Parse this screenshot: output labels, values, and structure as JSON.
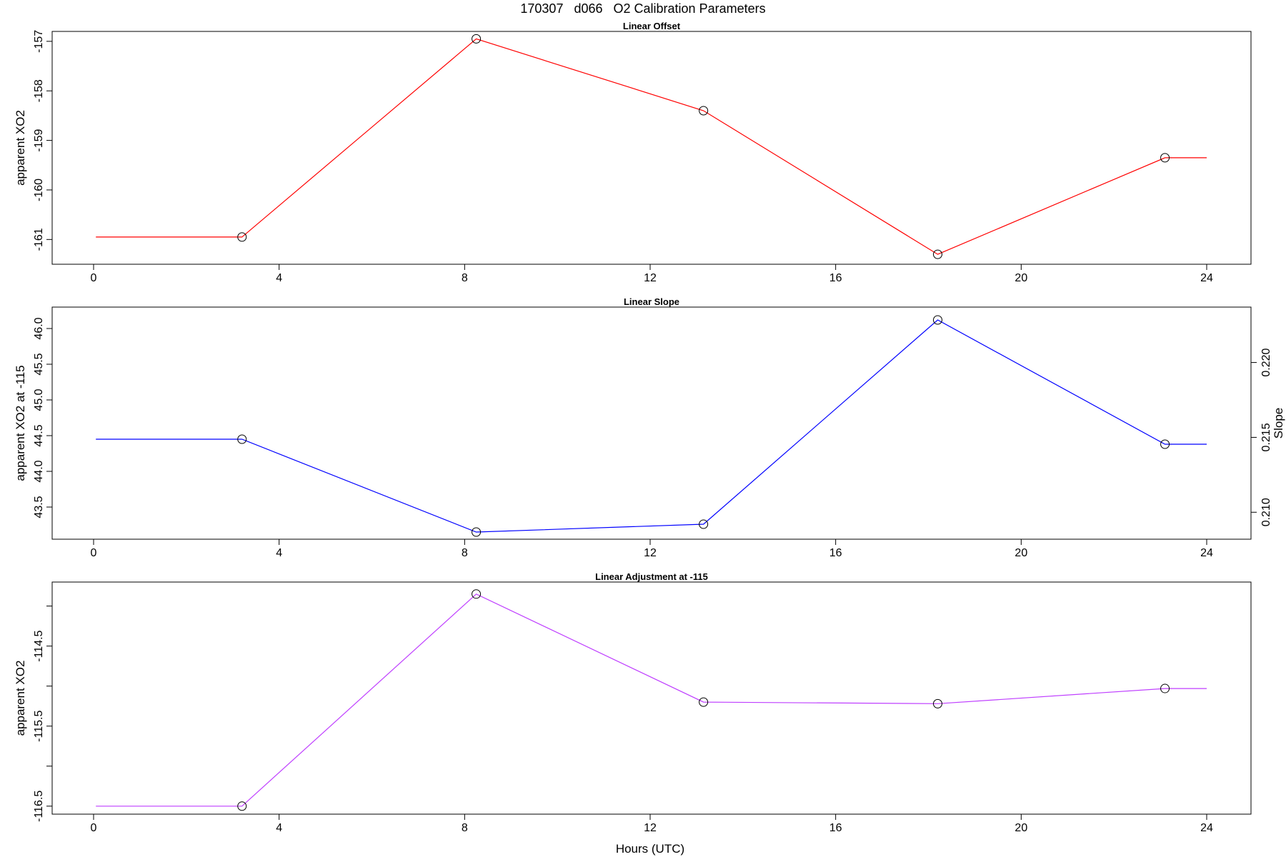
{
  "figure_title": "170307   d066   O2 Calibration Parameters",
  "chart_data": [
    {
      "type": "line",
      "title": "Linear Offset",
      "xlabel": "",
      "ylabel": "apparent XO2",
      "xlim": [
        0,
        24
      ],
      "ylim": [
        -161.5,
        -156.8
      ],
      "x_ticks": [
        "0",
        "4",
        "8",
        "12",
        "16",
        "20",
        "24"
      ],
      "y_ticks": [
        "-161",
        "-160",
        "-159",
        "-158",
        "-157"
      ],
      "grid": false,
      "legend": "none",
      "colors": {
        "line": "#ff0000",
        "marker": "#000000"
      },
      "series": [
        {
          "x": [
            0.05,
            3.2,
            8.25,
            13.15,
            18.2,
            23.1,
            24
          ],
          "y": [
            -160.95,
            -160.95,
            -156.95,
            -158.4,
            -161.3,
            -159.35,
            -159.35
          ],
          "markers": [
            false,
            true,
            true,
            true,
            true,
            true,
            false
          ]
        }
      ]
    },
    {
      "type": "line",
      "title": "Linear Slope",
      "xlabel": "",
      "ylabel": "apparent XO2 at -115",
      "y2label": "Slope",
      "xlim": [
        0,
        24
      ],
      "ylim": [
        43.05,
        46.3
      ],
      "y2lim": [
        0.2082,
        0.2237
      ],
      "x_ticks": [
        "0",
        "4",
        "8",
        "12",
        "16",
        "20",
        "24"
      ],
      "y_ticks": [
        "43.5",
        "44.0",
        "44.5",
        "45.0",
        "45.5",
        "46.0"
      ],
      "y2_ticks": [
        "0.210",
        "0.215",
        "0.220"
      ],
      "grid": false,
      "legend": "none",
      "colors": {
        "line": "#0000ff",
        "marker": "#000000"
      },
      "series": [
        {
          "x": [
            0.05,
            3.2,
            8.25,
            13.15,
            18.2,
            23.1,
            24
          ],
          "y": [
            44.45,
            44.45,
            43.15,
            43.26,
            46.12,
            44.38,
            44.38
          ],
          "markers": [
            false,
            true,
            true,
            true,
            true,
            true,
            false
          ]
        }
      ]
    },
    {
      "type": "line",
      "title": "Linear Adjustment at -115",
      "xlabel": "Hours (UTC)",
      "ylabel": "apparent XO2",
      "xlim": [
        0,
        24
      ],
      "ylim": [
        -116.6,
        -113.7
      ],
      "x_ticks": [
        "0",
        "4",
        "8",
        "12",
        "16",
        "20",
        "24"
      ],
      "y_ticks": [
        "-116.5",
        "-115.5",
        "-114.5"
      ],
      "y_minor_ticks": [
        -116.0,
        -115.0,
        -114.0
      ],
      "grid": false,
      "legend": "none",
      "colors": {
        "line": "#bf3fff",
        "marker": "#000000"
      },
      "series": [
        {
          "x": [
            0.05,
            3.2,
            8.25,
            13.15,
            18.2,
            23.1,
            24
          ],
          "y": [
            -116.5,
            -116.5,
            -113.85,
            -115.2,
            -115.22,
            -115.03,
            -115.03
          ],
          "markers": [
            false,
            true,
            true,
            true,
            true,
            true,
            false
          ]
        }
      ]
    }
  ]
}
